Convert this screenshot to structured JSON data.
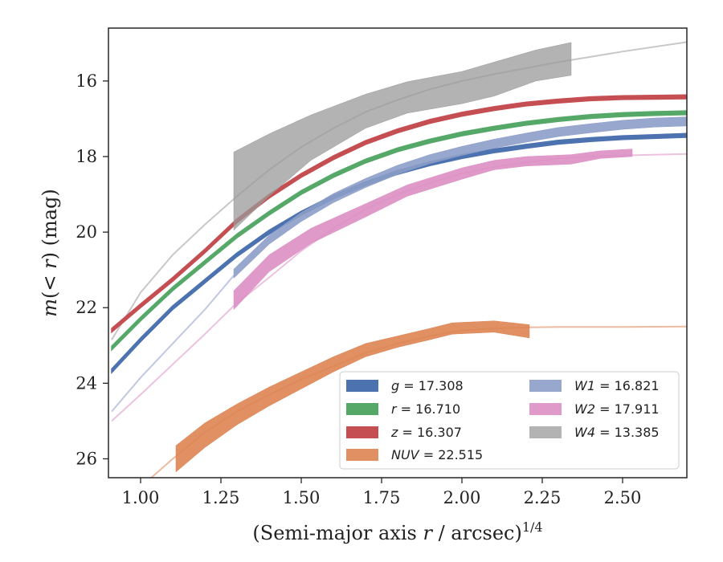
{
  "chart_data": {
    "type": "line",
    "xlabel_main": "(Semi-major axis ",
    "xlabel_var": "r",
    "xlabel_unit": " / arcsec)",
    "xlabel_exp": "1/4",
    "ylabel_m": "m",
    "ylabel_open": "(< ",
    "ylabel_r": "r",
    "ylabel_close": ") (mag)",
    "xlim": [
      0.9,
      2.7
    ],
    "ylim": [
      26.5,
      14.6
    ],
    "y_inverted": true,
    "xticks": [
      1.0,
      1.25,
      1.5,
      1.75,
      2.0,
      2.25,
      2.5
    ],
    "xtick_labels": [
      "1.00",
      "1.25",
      "1.50",
      "1.75",
      "2.00",
      "2.25",
      "2.50"
    ],
    "yticks": [
      16,
      18,
      20,
      22,
      24,
      26
    ],
    "ytick_labels": [
      "16",
      "18",
      "20",
      "22",
      "24",
      "26"
    ],
    "grid": false,
    "legend_position": "lower-right",
    "series": [
      {
        "name": "g = 17.308",
        "label_var": "g",
        "label_val": " = 17.308",
        "color": "#4c72b0",
        "band": [
          [
            0.91,
            23.72,
            23.62
          ],
          [
            1.0,
            22.9,
            22.8
          ],
          [
            1.1,
            22.05,
            21.95
          ],
          [
            1.2,
            21.35,
            21.25
          ],
          [
            1.3,
            20.65,
            20.55
          ],
          [
            1.4,
            20.05,
            19.95
          ],
          [
            1.5,
            19.55,
            19.45
          ],
          [
            1.6,
            19.12,
            19.02
          ],
          [
            1.7,
            18.77,
            18.67
          ],
          [
            1.8,
            18.47,
            18.37
          ],
          [
            1.9,
            18.24,
            18.14
          ],
          [
            2.0,
            18.05,
            17.95
          ],
          [
            2.1,
            17.9,
            17.8
          ],
          [
            2.2,
            17.78,
            17.68
          ],
          [
            2.3,
            17.67,
            17.57
          ],
          [
            2.4,
            17.6,
            17.5
          ],
          [
            2.5,
            17.55,
            17.45
          ],
          [
            2.6,
            17.52,
            17.42
          ],
          [
            2.7,
            17.49,
            17.39
          ]
        ]
      },
      {
        "name": "r = 16.710",
        "label_var": "r",
        "label_val": " = 16.710",
        "color": "#55a868",
        "band": [
          [
            0.91,
            23.12,
            23.02
          ],
          [
            1.0,
            22.35,
            22.25
          ],
          [
            1.1,
            21.55,
            21.45
          ],
          [
            1.2,
            20.85,
            20.75
          ],
          [
            1.3,
            20.15,
            20.05
          ],
          [
            1.4,
            19.55,
            19.45
          ],
          [
            1.5,
            19.0,
            18.9
          ],
          [
            1.6,
            18.55,
            18.45
          ],
          [
            1.7,
            18.17,
            18.07
          ],
          [
            1.8,
            17.87,
            17.77
          ],
          [
            1.9,
            17.64,
            17.54
          ],
          [
            2.0,
            17.45,
            17.35
          ],
          [
            2.1,
            17.3,
            17.2
          ],
          [
            2.2,
            17.17,
            17.07
          ],
          [
            2.3,
            17.07,
            16.97
          ],
          [
            2.4,
            16.99,
            16.89
          ],
          [
            2.5,
            16.94,
            16.84
          ],
          [
            2.6,
            16.91,
            16.81
          ],
          [
            2.7,
            16.89,
            16.79
          ]
        ]
      },
      {
        "name": "z = 16.307",
        "label_var": "z",
        "label_val": " = 16.307",
        "color": "#c44e52",
        "band": [
          [
            0.91,
            22.65,
            22.55
          ],
          [
            1.0,
            22.0,
            21.9
          ],
          [
            1.1,
            21.3,
            21.2
          ],
          [
            1.2,
            20.55,
            20.45
          ],
          [
            1.3,
            19.75,
            19.65
          ],
          [
            1.4,
            19.1,
            19.0
          ],
          [
            1.5,
            18.55,
            18.45
          ],
          [
            1.6,
            18.08,
            17.98
          ],
          [
            1.7,
            17.68,
            17.58
          ],
          [
            1.8,
            17.37,
            17.27
          ],
          [
            1.9,
            17.12,
            17.02
          ],
          [
            2.0,
            16.93,
            16.83
          ],
          [
            2.1,
            16.78,
            16.68
          ],
          [
            2.2,
            16.66,
            16.56
          ],
          [
            2.3,
            16.58,
            16.48
          ],
          [
            2.4,
            16.52,
            16.42
          ],
          [
            2.5,
            16.49,
            16.39
          ],
          [
            2.6,
            16.48,
            16.38
          ],
          [
            2.7,
            16.47,
            16.37
          ]
        ]
      },
      {
        "name": "NUV = 22.515",
        "label_var": "NUV",
        "label_val": " = 22.515",
        "color": "#dd8452",
        "line": [
          [
            0.9,
            27.6
          ],
          [
            1.0,
            26.75
          ],
          [
            1.1,
            26.0
          ],
          [
            1.2,
            25.3
          ],
          [
            1.3,
            24.75
          ],
          [
            1.4,
            24.3
          ],
          [
            1.5,
            23.9
          ],
          [
            1.6,
            23.55
          ],
          [
            1.7,
            23.2
          ],
          [
            1.8,
            22.95
          ],
          [
            1.9,
            22.75
          ],
          [
            2.0,
            22.6
          ],
          [
            2.1,
            22.55
          ],
          [
            2.2,
            22.52
          ],
          [
            2.3,
            22.51
          ],
          [
            2.5,
            22.51
          ],
          [
            2.7,
            22.5
          ]
        ],
        "band": [
          [
            1.11,
            26.35,
            25.65
          ],
          [
            1.2,
            25.7,
            25.05
          ],
          [
            1.3,
            25.1,
            24.55
          ],
          [
            1.4,
            24.6,
            24.1
          ],
          [
            1.5,
            24.15,
            23.7
          ],
          [
            1.6,
            23.7,
            23.3
          ],
          [
            1.7,
            23.3,
            22.95
          ],
          [
            1.8,
            23.05,
            22.75
          ],
          [
            1.9,
            22.85,
            22.55
          ],
          [
            1.97,
            22.7,
            22.4
          ],
          [
            2.1,
            22.65,
            22.35
          ],
          [
            2.21,
            22.8,
            22.45
          ]
        ]
      },
      {
        "name": "W1 = 16.821",
        "label_var": "W1",
        "label_val": " = 16.821",
        "color": "#8c9dc8",
        "line": [
          [
            0.91,
            24.75
          ],
          [
            1.0,
            23.85
          ],
          [
            1.1,
            22.95
          ],
          [
            1.2,
            22.05
          ],
          [
            1.29,
            21.15
          ]
        ],
        "band": [
          [
            1.29,
            21.22,
            20.98
          ],
          [
            1.4,
            20.32,
            20.08
          ],
          [
            1.5,
            19.72,
            19.48
          ],
          [
            1.6,
            19.22,
            18.98
          ],
          [
            1.7,
            18.82,
            18.58
          ],
          [
            1.8,
            18.47,
            18.23
          ],
          [
            1.9,
            18.19,
            17.95
          ],
          [
            2.0,
            17.97,
            17.73
          ],
          [
            2.1,
            17.78,
            17.54
          ],
          [
            2.2,
            17.62,
            17.38
          ],
          [
            2.3,
            17.47,
            17.23
          ],
          [
            2.4,
            17.37,
            17.13
          ],
          [
            2.5,
            17.28,
            17.04
          ],
          [
            2.6,
            17.22,
            16.98
          ],
          [
            2.7,
            17.19,
            16.95
          ]
        ]
      },
      {
        "name": "W2 = 17.911",
        "label_var": "W2",
        "label_val": " = 17.911",
        "color": "#dd8fc4",
        "line": [
          [
            0.91,
            25.0
          ],
          [
            1.0,
            24.3
          ],
          [
            1.1,
            23.5
          ],
          [
            1.2,
            22.7
          ],
          [
            1.29,
            21.95
          ],
          [
            1.4,
            21.2
          ],
          [
            1.5,
            20.5
          ],
          [
            1.6,
            19.9
          ],
          [
            1.7,
            19.4
          ],
          [
            1.8,
            19.0
          ],
          [
            1.9,
            18.7
          ],
          [
            2.0,
            18.45
          ],
          [
            2.1,
            18.28
          ],
          [
            2.2,
            18.15
          ],
          [
            2.3,
            18.05
          ],
          [
            2.4,
            18.0
          ],
          [
            2.5,
            17.97
          ],
          [
            2.7,
            17.93
          ]
        ],
        "band": [
          [
            1.29,
            22.05,
            21.55
          ],
          [
            1.4,
            21.05,
            20.6
          ],
          [
            1.53,
            20.3,
            19.9
          ],
          [
            1.7,
            19.6,
            19.25
          ],
          [
            1.83,
            19.05,
            18.75
          ],
          [
            2.0,
            18.6,
            18.3
          ],
          [
            2.1,
            18.35,
            18.1
          ],
          [
            2.2,
            18.25,
            18.0
          ],
          [
            2.34,
            18.2,
            17.95
          ],
          [
            2.43,
            18.05,
            17.85
          ],
          [
            2.53,
            18.0,
            17.8
          ]
        ]
      },
      {
        "name": "W4 = 13.385",
        "label_var": "W4",
        "label_val": " = 13.385",
        "color": "#9a9a9a",
        "line": [
          [
            0.91,
            22.85
          ],
          [
            1.0,
            21.6
          ],
          [
            1.1,
            20.6
          ],
          [
            1.2,
            19.8
          ],
          [
            1.3,
            19.05
          ],
          [
            1.4,
            18.35
          ],
          [
            1.5,
            17.75
          ],
          [
            1.6,
            17.25
          ],
          [
            1.7,
            16.82
          ],
          [
            1.8,
            16.5
          ],
          [
            1.9,
            16.22
          ],
          [
            2.0,
            16.0
          ],
          [
            2.1,
            15.82
          ],
          [
            2.2,
            15.66
          ],
          [
            2.3,
            15.5
          ],
          [
            2.5,
            15.22
          ],
          [
            2.7,
            14.97
          ]
        ],
        "band": [
          [
            1.29,
            19.95,
            17.88
          ],
          [
            1.4,
            19.05,
            17.4
          ],
          [
            1.53,
            18.1,
            16.9
          ],
          [
            1.7,
            17.25,
            16.35
          ],
          [
            1.83,
            16.85,
            16.02
          ],
          [
            2.0,
            16.6,
            15.75
          ],
          [
            2.1,
            16.4,
            15.5
          ],
          [
            2.23,
            16.0,
            15.18
          ],
          [
            2.34,
            15.85,
            14.98
          ]
        ]
      }
    ]
  }
}
